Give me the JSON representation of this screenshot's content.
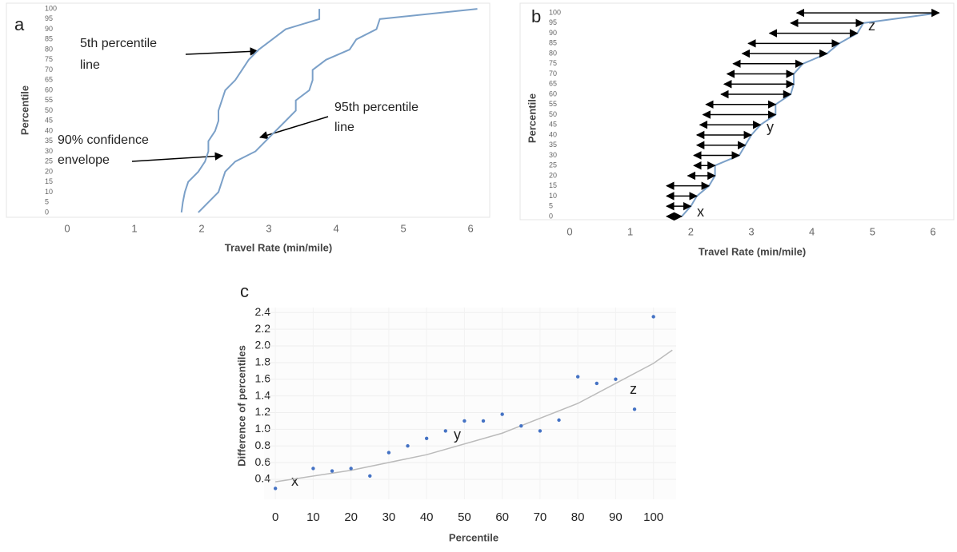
{
  "chart_data": [
    {
      "type": "line",
      "panel_label": "a",
      "xlabel": "Travel Rate (min/mile)",
      "ylabel": "Percentile",
      "xlim": [
        -0.88,
        6.26
      ],
      "ylim": [
        -2,
        102
      ],
      "xticks": [
        0,
        1,
        2,
        3,
        4,
        5,
        6
      ],
      "yticks": [
        0,
        5,
        10,
        15,
        20,
        25,
        30,
        35,
        40,
        45,
        50,
        55,
        60,
        65,
        70,
        75,
        80,
        85,
        90,
        95,
        100
      ],
      "grid": false,
      "series": [
        {
          "color": "#7ba0c8",
          "x": [
            1.7,
            1.72,
            1.75,
            1.8,
            1.95,
            2.05,
            2.1,
            2.1,
            2.2,
            2.25,
            2.25,
            2.3,
            2.35,
            2.5,
            2.6,
            2.7,
            2.85,
            3.05,
            3.25,
            3.75,
            3.75
          ],
          "y": [
            0,
            5,
            10,
            15,
            20,
            25,
            30,
            35,
            40,
            45,
            50,
            55,
            60,
            65,
            70,
            75,
            80,
            85,
            90,
            95,
            100
          ]
        },
        {
          "color": "#7ba0c8",
          "x": [
            1.95,
            2.1,
            2.25,
            2.3,
            2.35,
            2.5,
            2.8,
            2.95,
            3.1,
            3.25,
            3.4,
            3.4,
            3.6,
            3.65,
            3.65,
            3.85,
            4.2,
            4.3,
            4.6,
            4.65,
            6.1
          ],
          "y": [
            0,
            5,
            10,
            15,
            20,
            25,
            30,
            35,
            40,
            45,
            50,
            55,
            60,
            65,
            70,
            75,
            80,
            85,
            90,
            95,
            100
          ]
        }
      ],
      "annotations": [
        "5th percentile",
        "line",
        "95th percentile",
        "line",
        "90% confidence",
        "envelope"
      ]
    },
    {
      "type": "range",
      "panel_label": "b",
      "xlabel": "Travel Rate (min/mile)",
      "ylabel": "Percentile",
      "xlim": [
        -0.687,
        6.317
      ],
      "ylim": [
        -2,
        102
      ],
      "xticks": [
        0,
        1,
        2,
        3,
        4,
        5,
        6
      ],
      "yticks": [
        0,
        5,
        10,
        15,
        20,
        25,
        30,
        35,
        40,
        45,
        50,
        55,
        60,
        65,
        70,
        75,
        80,
        85,
        90,
        95,
        100
      ],
      "grid": false,
      "color": "#7ba0c8",
      "y": [
        0,
        5,
        10,
        15,
        20,
        25,
        30,
        35,
        40,
        45,
        50,
        55,
        60,
        65,
        70,
        75,
        80,
        85,
        90,
        95,
        100
      ],
      "starts": [
        1.6,
        1.6,
        1.6,
        1.6,
        1.95,
        2.05,
        2.05,
        2.1,
        2.1,
        2.15,
        2.2,
        2.25,
        2.5,
        2.55,
        2.6,
        2.7,
        2.85,
        2.95,
        3.3,
        3.65,
        3.75
      ],
      "ends": [
        1.85,
        2.0,
        2.1,
        2.3,
        2.4,
        2.4,
        2.8,
        2.9,
        3.0,
        3.15,
        3.4,
        3.4,
        3.65,
        3.7,
        3.7,
        3.85,
        4.25,
        4.45,
        4.75,
        4.85,
        6.1
      ],
      "annotations": [
        "z",
        "y",
        "x"
      ]
    },
    {
      "type": "scatter",
      "panel_label": "c",
      "xlabel": "Percentile",
      "ylabel": "Difference of percentiles",
      "xlim": [
        -3,
        106
      ],
      "ylim": [
        0.16,
        2.46
      ],
      "xticks": [
        0,
        10,
        20,
        30,
        40,
        50,
        60,
        70,
        80,
        90,
        100
      ],
      "yticks": [
        0.4,
        0.6,
        0.8,
        {
          "value": 1,
          "label": "1.0"
        },
        1.2,
        1.4,
        1.6,
        1.8,
        {
          "value": 2,
          "label": "2.0"
        },
        2.2,
        2.4
      ],
      "grid": true,
      "color": "#4472c4",
      "x": [
        0,
        10,
        15,
        20,
        25,
        30,
        35,
        40,
        45,
        50,
        55,
        60,
        65,
        70,
        75,
        80,
        85,
        90,
        95,
        100
      ],
      "values": [
        0.29,
        0.53,
        0.5,
        0.53,
        0.44,
        0.72,
        0.8,
        0.89,
        0.98,
        1.1,
        1.1,
        1.18,
        1.04,
        0.98,
        1.11,
        1.63,
        1.55,
        1.6,
        1.24,
        2.35
      ],
      "trendline": {
        "color": "#bbbbbb",
        "x": [
          0,
          20,
          40,
          60,
          80,
          100,
          105
        ],
        "y": [
          0.37,
          0.507,
          0.695,
          0.953,
          1.31,
          1.79,
          1.95
        ]
      },
      "annotations": [
        "x",
        "y",
        "z"
      ]
    }
  ]
}
